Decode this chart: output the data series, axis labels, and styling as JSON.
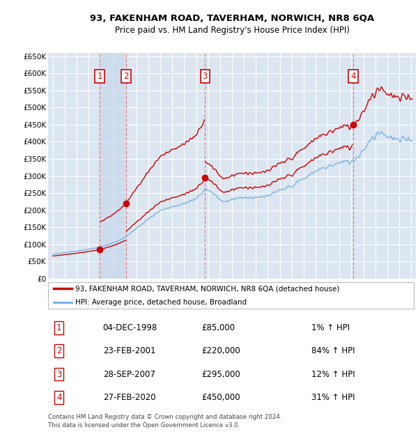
{
  "title1": "93, FAKENHAM ROAD, TAVERHAM, NORWICH, NR8 6QA",
  "title2": "Price paid vs. HM Land Registry's House Price Index (HPI)",
  "legend_line1": "93, FAKENHAM ROAD, TAVERHAM, NORWICH, NR8 6QA (detached house)",
  "legend_line2": "HPI: Average price, detached house, Broadland",
  "footer1": "Contains HM Land Registry data © Crown copyright and database right 2024.",
  "footer2": "This data is licensed under the Open Government Licence v3.0.",
  "sales": [
    {
      "num": 1,
      "date": "04-DEC-1998",
      "price": 85000,
      "pct": "1%",
      "year_x": 1998.92
    },
    {
      "num": 2,
      "date": "23-FEB-2001",
      "price": 220000,
      "pct": "84%",
      "year_x": 2001.14
    },
    {
      "num": 3,
      "date": "28-SEP-2007",
      "price": 295000,
      "pct": "12%",
      "year_x": 2007.74
    },
    {
      "num": 4,
      "date": "27-FEB-2020",
      "price": 450000,
      "pct": "31%",
      "year_x": 2020.14
    }
  ],
  "hpi_color": "#6aaee8",
  "price_color": "#cc0000",
  "background_plot": "#dce6f1",
  "shade_color": "#c5d8ef",
  "grid_color": "#ffffff",
  "ylim": [
    0,
    660000
  ],
  "yticks": [
    0,
    50000,
    100000,
    150000,
    200000,
    250000,
    300000,
    350000,
    400000,
    450000,
    500000,
    550000,
    600000,
    650000
  ],
  "xlim_start": 1994.6,
  "xlim_end": 2025.4
}
